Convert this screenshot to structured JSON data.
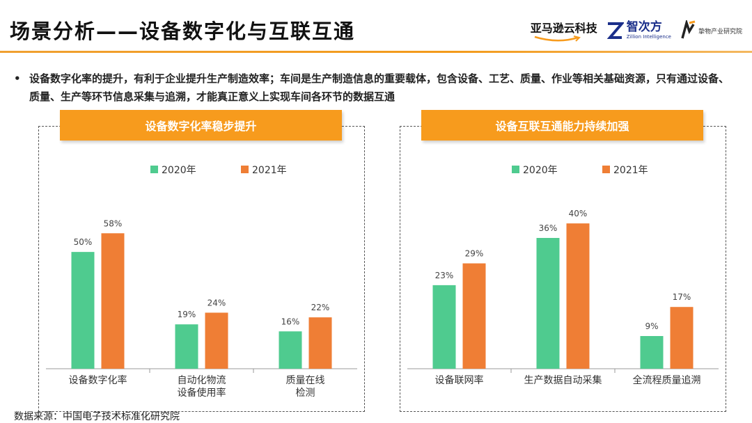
{
  "page": {
    "title": "场景分析——设备数字化与互联互通",
    "bullet": "设备数字化率的提升，有利于企业提升生产制造效率；车间是生产制造信息的重要载体，包含设备、工艺、质量、作业等相关基础资源，只有通过设备、质量、生产等环节信息采集与追溯，才能真正意义上实现车间各环节的数据互通",
    "source": "数据来源：中国电子技术标准化研究院"
  },
  "logos": {
    "amazon": "亚马逊云科技",
    "zc_cn": "智次方",
    "zc_en": "Zillion Intelligence",
    "lw_text": "挚物产业研究院"
  },
  "colors": {
    "accent": "#f79b1d",
    "series_2020": "#4fcb8f",
    "series_2021": "#ef7e35"
  },
  "chart_data": [
    {
      "type": "bar",
      "title": "设备数字化率稳步提升",
      "categories": [
        [
          "设备数字化率"
        ],
        [
          "自动化物流",
          "设备使用率"
        ],
        [
          "质量在线",
          "检测"
        ]
      ],
      "series": [
        {
          "name": "2020年",
          "values": [
            50,
            19,
            16
          ],
          "labels": [
            "50%",
            "19%",
            "16%"
          ]
        },
        {
          "name": "2021年",
          "values": [
            58,
            24,
            22
          ],
          "labels": [
            "58%",
            "24%",
            "22%"
          ]
        }
      ],
      "ylim": [
        0,
        70
      ],
      "legend": "top-center",
      "grid": false
    },
    {
      "type": "bar",
      "title": "设备互联互通能力持续加强",
      "categories": [
        [
          "设备联网率"
        ],
        [
          "生产数据自动采集"
        ],
        [
          "全流程质量追溯"
        ]
      ],
      "series": [
        {
          "name": "2020年",
          "values": [
            23,
            36,
            9
          ],
          "labels": [
            "23%",
            "36%",
            "9%"
          ]
        },
        {
          "name": "2021年",
          "values": [
            29,
            40,
            17
          ],
          "labels": [
            "29%",
            "40%",
            "17%"
          ]
        }
      ],
      "ylim": [
        0,
        45
      ],
      "legend": "top-center",
      "grid": false
    }
  ]
}
